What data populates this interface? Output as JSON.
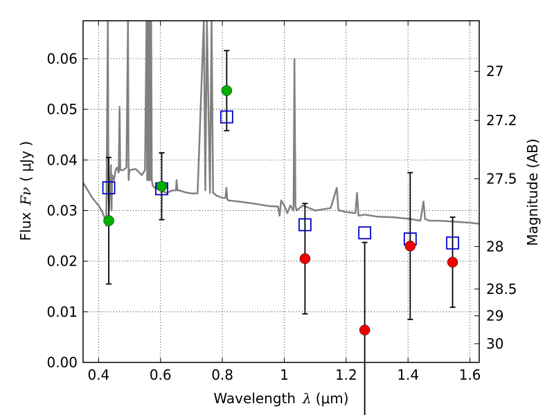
{
  "chart_data": {
    "type": "scatter",
    "xlabel": "Wavelength",
    "xlabel_symbol": "λ",
    "xlabel_unit": "(μm)",
    "ylabel": "Flux",
    "ylabel_symbol": "Fν",
    "ylabel_unit": "( μJy )",
    "y2label": "Magnitude (AB)",
    "xlim": [
      0.35,
      1.63
    ],
    "ylim": [
      0.0,
      0.0675
    ],
    "grid": true,
    "grid_style": "dotted",
    "x_ticks": [
      0.4,
      0.6,
      0.8,
      1.0,
      1.2,
      1.4,
      1.6
    ],
    "x_tick_labels": [
      "0.4",
      "0.6",
      "0.8",
      "1",
      "1.2",
      "1.4",
      "1.6"
    ],
    "y_ticks": [
      0.0,
      0.01,
      0.02,
      0.03,
      0.04,
      0.05,
      0.06
    ],
    "y_tick_labels": [
      "0.00",
      "0.01",
      "0.02",
      "0.03",
      "0.04",
      "0.05",
      "0.06"
    ],
    "right_ticks": [
      {
        "label": "27",
        "flux": 0.0575
      },
      {
        "label": "27.2",
        "flux": 0.0478
      },
      {
        "label": "27.5",
        "flux": 0.0363
      },
      {
        "label": "28",
        "flux": 0.0229
      },
      {
        "label": "28.5",
        "flux": 0.0145
      },
      {
        "label": "29",
        "flux": 0.0092
      },
      {
        "label": "30",
        "flux": 0.0037
      }
    ],
    "series": [
      {
        "marker": "square",
        "color": "#0000cc",
        "x": [
          0.433,
          0.604,
          0.814,
          1.067,
          1.26,
          1.407,
          1.544
        ],
        "y": [
          0.0345,
          0.0343,
          0.0485,
          0.0272,
          0.0256,
          0.0244,
          0.0236
        ]
      },
      {
        "marker": "circle",
        "color": "#00b000",
        "x": [
          0.433,
          0.604,
          0.814
        ],
        "y": [
          0.028,
          0.0348,
          0.0537
        ],
        "err": [
          0.0125,
          0.0066,
          0.0079
        ]
      },
      {
        "marker": "circle",
        "color": "#ee0000",
        "x": [
          1.067,
          1.26,
          1.407,
          1.544
        ],
        "y": [
          0.0205,
          0.0064,
          0.023,
          0.0198
        ],
        "err": [
          0.0109,
          0.0173,
          0.0145,
          0.0089
        ]
      }
    ],
    "spectrum": {
      "color": "#808080",
      "x": [
        0.35,
        0.38,
        0.4,
        0.41,
        0.42,
        0.425,
        0.43,
        0.432,
        0.434,
        0.44,
        0.442,
        0.444,
        0.45,
        0.455,
        0.46,
        0.465,
        0.468,
        0.47,
        0.48,
        0.49,
        0.495,
        0.497,
        0.5,
        0.52,
        0.54,
        0.55,
        0.555,
        0.557,
        0.56,
        0.562,
        0.565,
        0.567,
        0.57,
        0.572,
        0.575,
        0.58,
        0.6,
        0.62,
        0.64,
        0.65,
        0.652,
        0.655,
        0.66,
        0.68,
        0.7,
        0.72,
        0.74,
        0.745,
        0.75,
        0.76,
        0.765,
        0.77,
        0.78,
        0.8,
        0.81,
        0.813,
        0.816,
        0.82,
        0.85,
        0.9,
        0.95,
        0.98,
        0.985,
        0.99,
        1.0,
        1.01,
        1.02,
        1.025,
        1.03,
        1.033,
        1.036,
        1.04,
        1.06,
        1.1,
        1.15,
        1.17,
        1.175,
        1.18,
        1.2,
        1.23,
        1.235,
        1.24,
        1.26,
        1.3,
        1.35,
        1.4,
        1.44,
        1.45,
        1.455,
        1.46,
        1.47,
        1.5,
        1.55,
        1.6,
        1.63
      ],
      "y": [
        0.0355,
        0.0325,
        0.031,
        0.03,
        0.0285,
        0.027,
        0.0675,
        0.033,
        0.03,
        0.039,
        0.03,
        0.037,
        0.036,
        0.038,
        0.0385,
        0.0375,
        0.0505,
        0.038,
        0.038,
        0.0385,
        0.0675,
        0.036,
        0.038,
        0.0382,
        0.037,
        0.038,
        0.0675,
        0.036,
        0.0675,
        0.036,
        0.0675,
        0.036,
        0.0675,
        0.036,
        0.035,
        0.0345,
        0.034,
        0.0335,
        0.034,
        0.034,
        0.036,
        0.034,
        0.034,
        0.0336,
        0.0334,
        0.0334,
        0.0675,
        0.034,
        0.0675,
        0.0335,
        0.0675,
        0.0335,
        0.033,
        0.0325,
        0.0325,
        0.0345,
        0.0322,
        0.032,
        0.0318,
        0.0314,
        0.0309,
        0.0308,
        0.029,
        0.032,
        0.031,
        0.0295,
        0.031,
        0.0305,
        0.03,
        0.06,
        0.031,
        0.03,
        0.031,
        0.03,
        0.0305,
        0.0345,
        0.03,
        0.03,
        0.0297,
        0.0295,
        0.0335,
        0.029,
        0.0292,
        0.0288,
        0.0287,
        0.0284,
        0.028,
        0.0318,
        0.0283,
        0.0282,
        0.028,
        0.028,
        0.0278,
        0.0276,
        0.0274
      ]
    }
  }
}
